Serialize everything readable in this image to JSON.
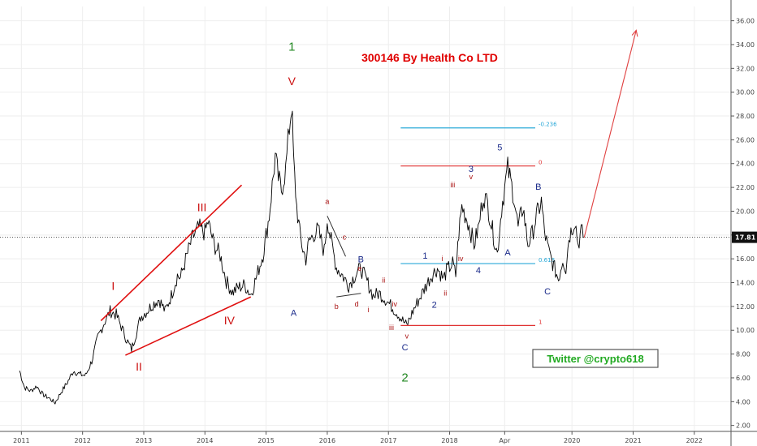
{
  "chart_data": {
    "type": "line",
    "title": "300146 By Health Co LTD",
    "watermark": "Twitter @crypto618",
    "xlabel": "",
    "ylabel": "",
    "x_ticks": [
      "2011",
      "2012",
      "2013",
      "2014",
      "2015",
      "2016",
      "2017",
      "2018",
      "Apr",
      "2020",
      "2021",
      "2022"
    ],
    "y_ticks": [
      "2.00",
      "4.00",
      "6.00",
      "8.00",
      "10.00",
      "12.00",
      "14.00",
      "16.00",
      "18.00",
      "20.00",
      "22.00",
      "24.00",
      "26.00",
      "28.00",
      "30.00",
      "32.00",
      "34.00",
      "36.00"
    ],
    "ylim": [
      1.5,
      37.2
    ],
    "xlim": [
      2010.65,
      2022.6
    ],
    "grid": true,
    "last_price": "17.81",
    "last_price_value": 17.81,
    "series": [
      {
        "color": "#000000",
        "x": [
          2010.97,
          2011.05,
          2011.15,
          2011.25,
          2011.35,
          2011.45,
          2011.55,
          2011.65,
          2011.75,
          2011.85,
          2011.95,
          2012.05,
          2012.15,
          2012.25,
          2012.35,
          2012.45,
          2012.55,
          2012.65,
          2012.72,
          2012.8,
          2012.88,
          2012.95,
          2013.05,
          2013.15,
          2013.25,
          2013.35,
          2013.45,
          2013.55,
          2013.6,
          2013.7,
          2013.8,
          2013.9,
          2014.0,
          2014.05,
          2014.15,
          2014.25,
          2014.35,
          2014.45,
          2014.55,
          2014.65,
          2014.75,
          2014.85,
          2014.95,
          2015.05,
          2015.15,
          2015.2,
          2015.25,
          2015.32,
          2015.38,
          2015.42,
          2015.45,
          2015.5,
          2015.55,
          2015.6,
          2015.65,
          2015.7,
          2015.78,
          2015.85,
          2015.95,
          2016.0,
          2016.08,
          2016.15,
          2016.25,
          2016.35,
          2016.45,
          2016.55,
          2016.65,
          2016.75,
          2016.85,
          2016.95,
          2017.05,
          2017.15,
          2017.25,
          2017.3,
          2017.4,
          2017.5,
          2017.6,
          2017.7,
          2017.8,
          2017.9,
          2017.95,
          2018.05,
          2018.1,
          2018.15,
          2018.2,
          2018.3,
          2018.4,
          2018.48,
          2018.55,
          2018.62,
          2018.7,
          2018.78,
          2018.85,
          2018.95,
          2019.05,
          2019.12,
          2019.2,
          2019.28,
          2019.35,
          2019.42,
          2019.5,
          2019.55,
          2019.62,
          2019.7,
          2019.78,
          2019.85,
          2019.9,
          2019.95,
          2020.05,
          2020.1,
          2020.15,
          2020.2
        ],
        "y": [
          6.6,
          5.2,
          4.9,
          5.3,
          4.6,
          4.3,
          3.9,
          4.8,
          5.6,
          6.6,
          6.3,
          6.2,
          7.4,
          9.4,
          10.6,
          11.6,
          11.3,
          10.1,
          9.2,
          8.4,
          9.8,
          11.1,
          11.6,
          12.2,
          12.6,
          11.6,
          12.9,
          14.6,
          14.4,
          16.2,
          17.8,
          18.6,
          18.2,
          19.1,
          17.2,
          16.3,
          14.1,
          13.2,
          13.6,
          13.8,
          13.0,
          14.6,
          16.4,
          19.6,
          24.6,
          22.8,
          21.8,
          23.5,
          27.0,
          29.0,
          24.1,
          20.4,
          18.2,
          16.8,
          16.0,
          17.4,
          18.1,
          18.4,
          16.6,
          19.4,
          17.0,
          15.3,
          14.6,
          13.8,
          14.6,
          15.2,
          14.1,
          12.9,
          13.1,
          12.6,
          12.0,
          11.4,
          10.7,
          10.4,
          11.6,
          12.6,
          13.6,
          14.6,
          15.2,
          14.3,
          15.0,
          15.6,
          14.6,
          18.2,
          20.4,
          19.1,
          17.2,
          18.8,
          21.4,
          20.6,
          18.4,
          16.4,
          20.3,
          23.6,
          21.3,
          18.6,
          20.4,
          17.2,
          18.1,
          19.6,
          20.8,
          18.3,
          16.6,
          15.4,
          14.3,
          16.0,
          15.2,
          17.8,
          19.3,
          17.2,
          18.3,
          17.8
        ]
      }
    ],
    "wave_labels": [
      {
        "text": "1",
        "x": 2015.42,
        "y": 33.5,
        "color": "#228822",
        "size": 15
      },
      {
        "text": "V",
        "x": 2015.42,
        "y": 30.6,
        "color": "#cc1111",
        "size": 14
      },
      {
        "text": "I",
        "x": 2012.5,
        "y": 13.4,
        "color": "#cc1111",
        "size": 14
      },
      {
        "text": "II",
        "x": 2012.92,
        "y": 6.6,
        "color": "#cc1111",
        "size": 14
      },
      {
        "text": "III",
        "x": 2013.95,
        "y": 20.0,
        "color": "#cc1111",
        "size": 14
      },
      {
        "text": "IV",
        "x": 2014.4,
        "y": 10.5,
        "color": "#cc1111",
        "size": 14
      },
      {
        "text": "A",
        "x": 2015.45,
        "y": 11.2,
        "color": "#1a2a8a",
        "size": 11
      },
      {
        "text": "a",
        "x": 2016.0,
        "y": 20.6,
        "color": "#aa1111",
        "size": 9
      },
      {
        "text": "c",
        "x": 2016.28,
        "y": 17.6,
        "color": "#aa1111",
        "size": 9
      },
      {
        "text": "B",
        "x": 2016.55,
        "y": 15.7,
        "color": "#1a2a8a",
        "size": 11
      },
      {
        "text": "e",
        "x": 2016.53,
        "y": 15.0,
        "color": "#aa1111",
        "size": 9
      },
      {
        "text": "b",
        "x": 2016.15,
        "y": 11.8,
        "color": "#aa1111",
        "size": 9
      },
      {
        "text": "d",
        "x": 2016.48,
        "y": 12.0,
        "color": "#aa1111",
        "size": 9
      },
      {
        "text": "i",
        "x": 2016.67,
        "y": 11.5,
        "color": "#aa1111",
        "size": 9
      },
      {
        "text": "ii",
        "x": 2016.92,
        "y": 14.0,
        "color": "#aa1111",
        "size": 9
      },
      {
        "text": "iv",
        "x": 2017.1,
        "y": 12.0,
        "color": "#aa1111",
        "size": 9
      },
      {
        "text": "iii",
        "x": 2017.05,
        "y": 10.0,
        "color": "#aa1111",
        "size": 9
      },
      {
        "text": "v",
        "x": 2017.3,
        "y": 9.3,
        "color": "#aa1111",
        "size": 9
      },
      {
        "text": "C",
        "x": 2017.27,
        "y": 8.3,
        "color": "#1a2a8a",
        "size": 11
      },
      {
        "text": "2",
        "x": 2017.27,
        "y": 5.7,
        "color": "#228822",
        "size": 15
      },
      {
        "text": "1",
        "x": 2017.6,
        "y": 16.0,
        "color": "#1a2a8a",
        "size": 11
      },
      {
        "text": "i",
        "x": 2017.88,
        "y": 15.8,
        "color": "#aa1111",
        "size": 9
      },
      {
        "text": "2",
        "x": 2017.75,
        "y": 11.9,
        "color": "#1a2a8a",
        "size": 11
      },
      {
        "text": "ii",
        "x": 2017.93,
        "y": 12.9,
        "color": "#aa1111",
        "size": 9
      },
      {
        "text": "iii",
        "x": 2018.05,
        "y": 22.0,
        "color": "#aa1111",
        "size": 9
      },
      {
        "text": "iv",
        "x": 2018.18,
        "y": 15.8,
        "color": "#aa1111",
        "size": 9
      },
      {
        "text": "3",
        "x": 2018.35,
        "y": 23.3,
        "color": "#1a2a8a",
        "size": 11
      },
      {
        "text": "v",
        "x": 2018.35,
        "y": 22.7,
        "color": "#aa1111",
        "size": 9
      },
      {
        "text": "4",
        "x": 2018.47,
        "y": 14.8,
        "color": "#1a2a8a",
        "size": 11
      },
      {
        "text": "5",
        "x": 2018.82,
        "y": 25.1,
        "color": "#1a2a8a",
        "size": 11
      },
      {
        "text": "A",
        "x": 2018.95,
        "y": 16.3,
        "color": "#1a2a8a",
        "size": 11
      },
      {
        "text": "B",
        "x": 2019.45,
        "y": 21.8,
        "color": "#1a2a8a",
        "size": 11
      },
      {
        "text": "C",
        "x": 2019.6,
        "y": 13.0,
        "color": "#1a2a8a",
        "size": 11
      }
    ],
    "fib_levels": [
      {
        "label": "-0.236",
        "value": 27.0,
        "color": "#2aa9d8",
        "x_start": 2017.2,
        "x_end": 2019.4
      },
      {
        "label": "0",
        "value": 23.8,
        "color": "#e03333",
        "x_start": 2017.2,
        "x_end": 2019.4
      },
      {
        "label": "0.618",
        "value": 15.6,
        "color": "#2aa9d8",
        "x_start": 2017.2,
        "x_end": 2019.4
      },
      {
        "label": "1",
        "value": 10.4,
        "color": "#e03333",
        "x_start": 2017.2,
        "x_end": 2019.4
      }
    ],
    "trend_lines": [
      {
        "color": "#e01010",
        "x1": 2012.3,
        "y1": 10.8,
        "x2": 2014.6,
        "y2": 22.2
      },
      {
        "color": "#e01010",
        "x1": 2012.7,
        "y1": 7.9,
        "x2": 2014.75,
        "y2": 12.8
      },
      {
        "color": "#333333",
        "x1": 2016.0,
        "y1": 19.6,
        "x2": 2016.3,
        "y2": 16.2
      },
      {
        "color": "#333333",
        "x1": 2016.15,
        "y1": 12.8,
        "x2": 2016.55,
        "y2": 13.1
      }
    ],
    "projection_arrow": {
      "color": "#e04040",
      "x1": 2020.2,
      "y1": 17.8,
      "x2": 2021.05,
      "y2": 35.2
    },
    "colors": {
      "label_red": "#cc1111",
      "label_green": "#228822",
      "label_blue": "#1a2a8a",
      "price_tag_bg": "#111111",
      "grid": "#eeeeee"
    }
  }
}
